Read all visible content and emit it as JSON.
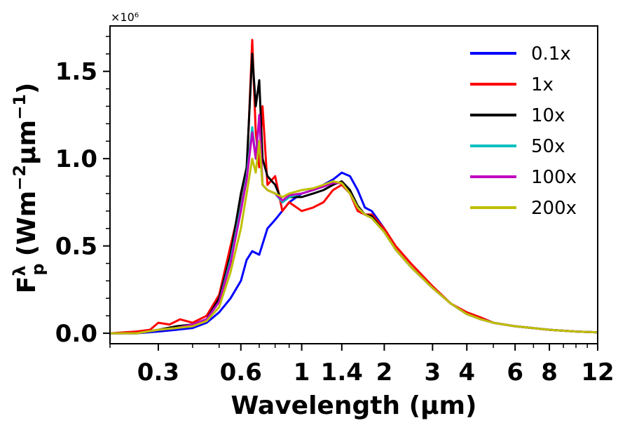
{
  "chart_data": {
    "type": "line",
    "title": "",
    "xlabel": "Wavelength (μm)",
    "ylabel": "F_p^λ (Wm^-2 μm^-1)",
    "ylabel_parts": {
      "main": "F",
      "sub": "p",
      "sup": "λ",
      "units_a": "(Wm",
      "units_b": "−2",
      "units_c": "μm",
      "units_d": "−1",
      "units_e": ")"
    },
    "y_multiplier": "×10⁶",
    "xscale": "log",
    "xlim": [
      0.2,
      12
    ],
    "ylim": [
      -0.06,
      1.76
    ],
    "xticks": [
      {
        "value": 0.3,
        "label": "0.3"
      },
      {
        "value": 0.6,
        "label": "0.6"
      },
      {
        "value": 1,
        "label": "1"
      },
      {
        "value": 1.4,
        "label": "1.4"
      },
      {
        "value": 2,
        "label": "2"
      },
      {
        "value": 3,
        "label": "3"
      },
      {
        "value": 4,
        "label": "4"
      },
      {
        "value": 6,
        "label": "6"
      },
      {
        "value": 8,
        "label": "8"
      },
      {
        "value": 12,
        "label": "12"
      }
    ],
    "yticks": [
      {
        "value": 0.0,
        "label": "0.0"
      },
      {
        "value": 0.5,
        "label": "0.5"
      },
      {
        "value": 1.0,
        "label": "1.0"
      },
      {
        "value": 1.5,
        "label": "1.5"
      }
    ],
    "legend_position": "top-right",
    "series": [
      {
        "name": "0.1x",
        "color": "#0000ff",
        "x": [
          0.2,
          0.25,
          0.3,
          0.35,
          0.4,
          0.45,
          0.5,
          0.55,
          0.6,
          0.63,
          0.66,
          0.7,
          0.75,
          0.8,
          0.9,
          1.0,
          1.1,
          1.2,
          1.3,
          1.4,
          1.5,
          1.6,
          1.7,
          1.8,
          2.0,
          2.2,
          2.5,
          3.0,
          3.5,
          4.0,
          4.5,
          5.0,
          6.0,
          8.0,
          10.0,
          12.0
        ],
        "y": [
          0.0,
          0.0,
          0.01,
          0.02,
          0.03,
          0.06,
          0.12,
          0.2,
          0.3,
          0.42,
          0.47,
          0.45,
          0.6,
          0.65,
          0.75,
          0.8,
          0.82,
          0.85,
          0.88,
          0.92,
          0.9,
          0.82,
          0.72,
          0.7,
          0.6,
          0.48,
          0.38,
          0.26,
          0.17,
          0.11,
          0.09,
          0.06,
          0.04,
          0.02,
          0.01,
          0.005
        ]
      },
      {
        "name": "1x",
        "color": "#ff0000",
        "x": [
          0.2,
          0.25,
          0.28,
          0.3,
          0.33,
          0.36,
          0.4,
          0.45,
          0.5,
          0.55,
          0.6,
          0.63,
          0.66,
          0.68,
          0.7,
          0.72,
          0.75,
          0.8,
          0.85,
          0.9,
          1.0,
          1.1,
          1.2,
          1.3,
          1.4,
          1.5,
          1.6,
          1.7,
          1.8,
          2.0,
          2.2,
          2.5,
          3.0,
          3.5,
          4.0,
          4.5,
          5.0,
          6.0,
          8.0,
          10.0,
          12.0
        ],
        "y": [
          0.0,
          0.01,
          0.02,
          0.06,
          0.05,
          0.08,
          0.06,
          0.1,
          0.22,
          0.5,
          0.75,
          0.9,
          1.68,
          1.15,
          0.95,
          1.3,
          0.85,
          0.9,
          0.7,
          0.75,
          0.7,
          0.72,
          0.75,
          0.82,
          0.85,
          0.8,
          0.7,
          0.68,
          0.68,
          0.6,
          0.5,
          0.4,
          0.27,
          0.17,
          0.12,
          0.09,
          0.06,
          0.04,
          0.02,
          0.01,
          0.005
        ]
      },
      {
        "name": "10x",
        "color": "#000000",
        "x": [
          0.2,
          0.25,
          0.3,
          0.35,
          0.4,
          0.45,
          0.5,
          0.55,
          0.6,
          0.63,
          0.66,
          0.68,
          0.7,
          0.72,
          0.75,
          0.8,
          0.85,
          0.9,
          1.0,
          1.1,
          1.2,
          1.3,
          1.4,
          1.5,
          1.6,
          1.7,
          1.8,
          2.0,
          2.2,
          2.5,
          3.0,
          3.5,
          4.0,
          4.5,
          5.0,
          6.0,
          8.0,
          10.0,
          12.0
        ],
        "y": [
          0.0,
          0.0,
          0.02,
          0.04,
          0.05,
          0.08,
          0.2,
          0.45,
          0.8,
          0.95,
          1.6,
          1.3,
          1.45,
          1.0,
          0.9,
          0.85,
          0.75,
          0.78,
          0.78,
          0.8,
          0.82,
          0.85,
          0.87,
          0.82,
          0.73,
          0.68,
          0.67,
          0.58,
          0.48,
          0.38,
          0.26,
          0.17,
          0.11,
          0.08,
          0.06,
          0.04,
          0.02,
          0.01,
          0.005
        ]
      },
      {
        "name": "50x",
        "color": "#00bfbf",
        "x": [
          0.2,
          0.25,
          0.3,
          0.35,
          0.4,
          0.45,
          0.5,
          0.55,
          0.6,
          0.63,
          0.66,
          0.68,
          0.7,
          0.72,
          0.75,
          0.8,
          0.85,
          0.9,
          1.0,
          1.1,
          1.2,
          1.3,
          1.4,
          1.5,
          1.6,
          1.7,
          1.8,
          2.0,
          2.2,
          2.5,
          3.0,
          3.5,
          4.0,
          4.5,
          5.0,
          6.0,
          8.0,
          10.0,
          12.0
        ],
        "y": [
          0.0,
          0.0,
          0.02,
          0.03,
          0.05,
          0.08,
          0.18,
          0.42,
          0.72,
          0.9,
          1.18,
          1.0,
          1.1,
          0.85,
          0.82,
          0.8,
          0.75,
          0.78,
          0.8,
          0.82,
          0.84,
          0.86,
          0.86,
          0.8,
          0.72,
          0.68,
          0.66,
          0.58,
          0.48,
          0.38,
          0.26,
          0.17,
          0.11,
          0.08,
          0.06,
          0.04,
          0.02,
          0.01,
          0.005
        ]
      },
      {
        "name": "100x",
        "color": "#bf00bf",
        "x": [
          0.2,
          0.25,
          0.3,
          0.35,
          0.4,
          0.45,
          0.5,
          0.55,
          0.6,
          0.63,
          0.66,
          0.68,
          0.7,
          0.72,
          0.75,
          0.8,
          0.85,
          0.9,
          1.0,
          1.1,
          1.2,
          1.3,
          1.4,
          1.5,
          1.6,
          1.7,
          1.8,
          2.0,
          2.2,
          2.5,
          3.0,
          3.5,
          4.0,
          4.5,
          5.0,
          6.0,
          8.0,
          10.0,
          12.0
        ],
        "y": [
          0.0,
          0.0,
          0.02,
          0.03,
          0.05,
          0.08,
          0.18,
          0.4,
          0.7,
          0.88,
          1.15,
          1.0,
          1.25,
          0.85,
          0.82,
          0.8,
          0.76,
          0.79,
          0.8,
          0.82,
          0.84,
          0.86,
          0.86,
          0.8,
          0.72,
          0.68,
          0.66,
          0.58,
          0.48,
          0.38,
          0.26,
          0.17,
          0.11,
          0.08,
          0.06,
          0.04,
          0.02,
          0.01,
          0.005
        ]
      },
      {
        "name": "200x",
        "color": "#bfbf00",
        "x": [
          0.2,
          0.25,
          0.3,
          0.35,
          0.4,
          0.45,
          0.5,
          0.55,
          0.6,
          0.63,
          0.66,
          0.68,
          0.7,
          0.72,
          0.75,
          0.8,
          0.85,
          0.9,
          1.0,
          1.1,
          1.2,
          1.3,
          1.4,
          1.5,
          1.6,
          1.7,
          1.8,
          2.0,
          2.2,
          2.5,
          3.0,
          3.5,
          4.0,
          4.5,
          5.0,
          6.0,
          8.0,
          10.0,
          12.0
        ],
        "y": [
          0.0,
          0.0,
          0.02,
          0.03,
          0.04,
          0.07,
          0.15,
          0.35,
          0.6,
          0.8,
          1.0,
          0.92,
          1.1,
          0.85,
          0.82,
          0.8,
          0.78,
          0.8,
          0.82,
          0.83,
          0.85,
          0.87,
          0.86,
          0.8,
          0.72,
          0.68,
          0.66,
          0.58,
          0.48,
          0.38,
          0.26,
          0.17,
          0.11,
          0.08,
          0.06,
          0.04,
          0.02,
          0.01,
          0.005
        ]
      }
    ]
  }
}
